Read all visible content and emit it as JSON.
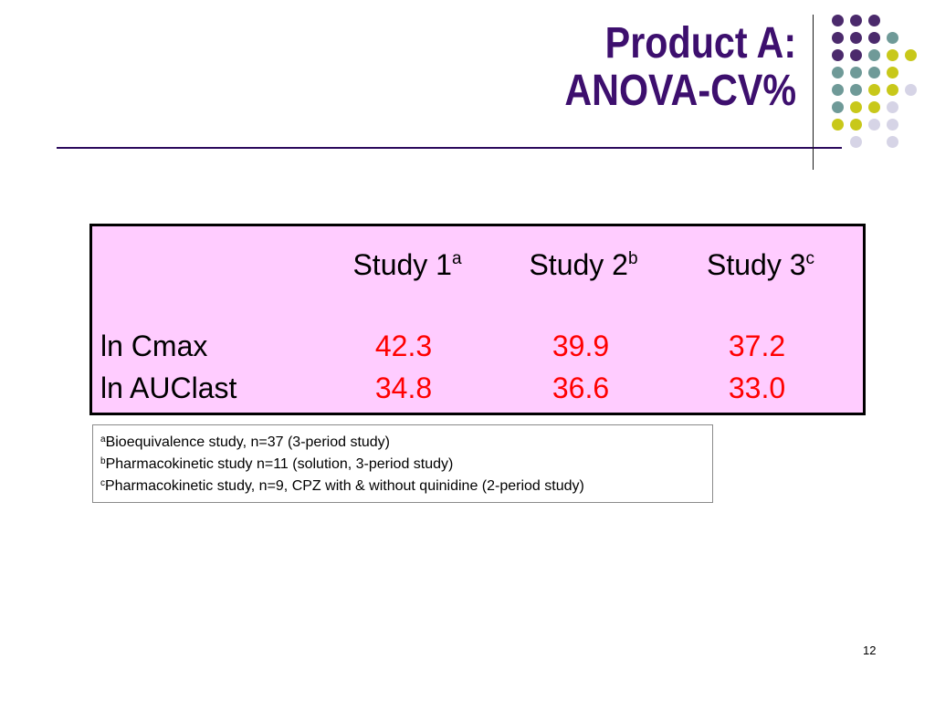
{
  "slide": {
    "title_line1": "Product A:",
    "title_line2": "ANOVA-CV%",
    "page_number": "12"
  },
  "palette": {
    "purple": "#4b2a6c",
    "teal": "#6f9a98",
    "yellow": "#c8c81a",
    "lavender": "#d6d4e6",
    "table_bg": "#ffccff",
    "value_red": "#ff0000",
    "title_color": "#3d0f6e"
  },
  "table": {
    "headers": [
      {
        "label": "Study 1",
        "sup": "a"
      },
      {
        "label": "Study 2",
        "sup": "b"
      },
      {
        "label": "Study 3",
        "sup": "c"
      }
    ],
    "rows": [
      {
        "label": "ln Cmax",
        "values": [
          "42.3",
          "39.9",
          "37.2"
        ]
      },
      {
        "label": "ln AUClast",
        "values": [
          "34.8",
          "36.6",
          "33.0"
        ]
      }
    ]
  },
  "footnotes": [
    {
      "sup": "a",
      "text": "Bioequivalence study, n=37 (3-period study)"
    },
    {
      "sup": "b",
      "text": "Pharmacokinetic study n=11 (solution, 3-period study)"
    },
    {
      "sup": "c",
      "text": "Pharmacokinetic study, n=9, CPZ with & without quinidine (2-period study)"
    }
  ]
}
